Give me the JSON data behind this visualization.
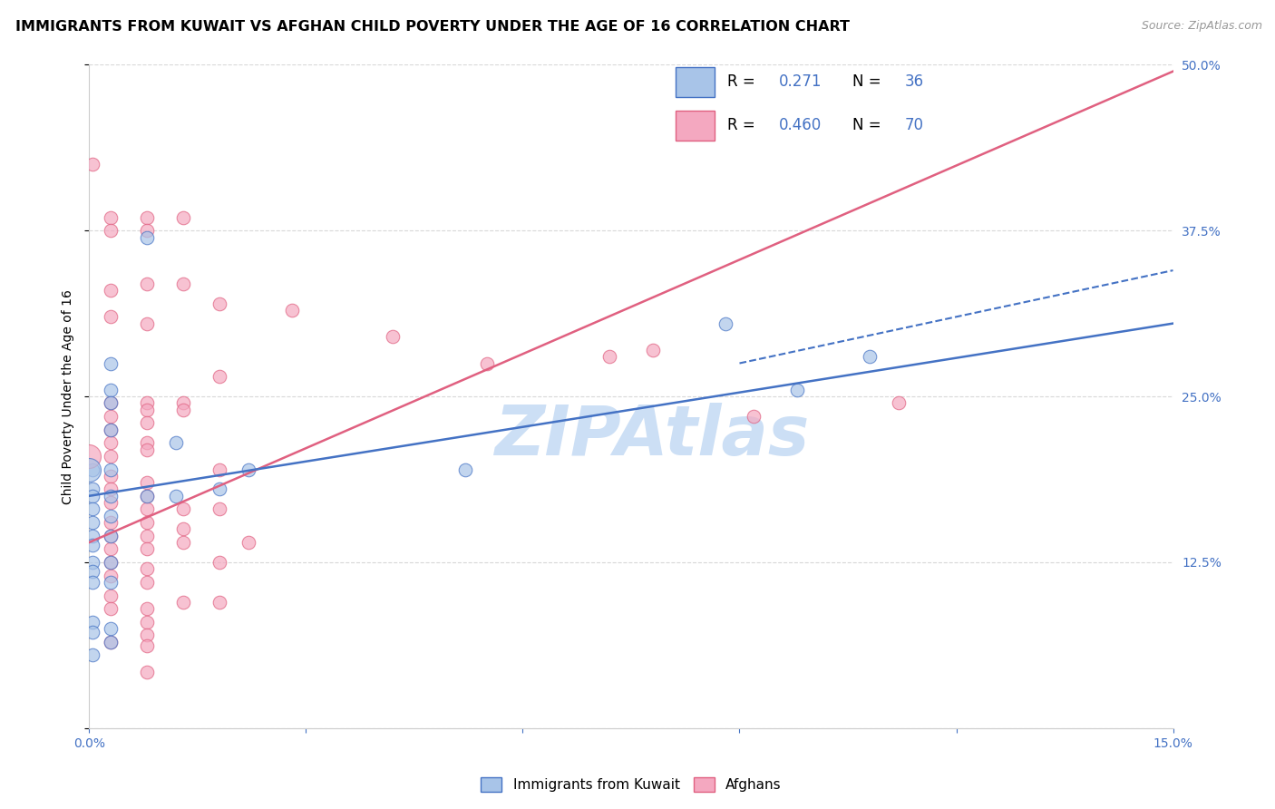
{
  "title": "IMMIGRANTS FROM KUWAIT VS AFGHAN CHILD POVERTY UNDER THE AGE OF 16 CORRELATION CHART",
  "source": "Source: ZipAtlas.com",
  "ylabel": "Child Poverty Under the Age of 16",
  "x_min": 0.0,
  "x_max": 0.15,
  "y_min": 0.0,
  "y_max": 0.5,
  "blue_color": "#a8c4e8",
  "pink_color": "#f4a8c0",
  "blue_line_color": "#4472c4",
  "pink_line_color": "#e06080",
  "blue_line": {
    "x0": 0.0,
    "y0": 0.175,
    "x1": 0.15,
    "y1": 0.305
  },
  "blue_dash_line": {
    "x0": 0.09,
    "y0": 0.275,
    "x1": 0.15,
    "y1": 0.345
  },
  "pink_line": {
    "x0": 0.0,
    "y0": 0.14,
    "x1": 0.15,
    "y1": 0.495
  },
  "blue_scatter": [
    [
      0.0005,
      0.195
    ],
    [
      0.0005,
      0.18
    ],
    [
      0.0005,
      0.175
    ],
    [
      0.0005,
      0.165
    ],
    [
      0.0005,
      0.155
    ],
    [
      0.0005,
      0.145
    ],
    [
      0.0005,
      0.138
    ],
    [
      0.0005,
      0.125
    ],
    [
      0.0005,
      0.118
    ],
    [
      0.0005,
      0.11
    ],
    [
      0.0005,
      0.08
    ],
    [
      0.0005,
      0.072
    ],
    [
      0.0005,
      0.055
    ],
    [
      0.003,
      0.275
    ],
    [
      0.003,
      0.255
    ],
    [
      0.003,
      0.245
    ],
    [
      0.003,
      0.225
    ],
    [
      0.003,
      0.195
    ],
    [
      0.003,
      0.175
    ],
    [
      0.003,
      0.16
    ],
    [
      0.003,
      0.145
    ],
    [
      0.003,
      0.125
    ],
    [
      0.003,
      0.11
    ],
    [
      0.003,
      0.075
    ],
    [
      0.003,
      0.065
    ],
    [
      0.008,
      0.37
    ],
    [
      0.008,
      0.175
    ],
    [
      0.012,
      0.215
    ],
    [
      0.012,
      0.175
    ],
    [
      0.018,
      0.18
    ],
    [
      0.022,
      0.195
    ],
    [
      0.052,
      0.195
    ],
    [
      0.088,
      0.305
    ],
    [
      0.098,
      0.255
    ],
    [
      0.108,
      0.28
    ]
  ],
  "pink_scatter": [
    [
      0.0005,
      0.425
    ],
    [
      0.003,
      0.385
    ],
    [
      0.003,
      0.375
    ],
    [
      0.003,
      0.33
    ],
    [
      0.003,
      0.31
    ],
    [
      0.003,
      0.245
    ],
    [
      0.003,
      0.235
    ],
    [
      0.003,
      0.225
    ],
    [
      0.003,
      0.215
    ],
    [
      0.003,
      0.205
    ],
    [
      0.003,
      0.19
    ],
    [
      0.003,
      0.18
    ],
    [
      0.003,
      0.17
    ],
    [
      0.003,
      0.155
    ],
    [
      0.003,
      0.145
    ],
    [
      0.003,
      0.135
    ],
    [
      0.003,
      0.125
    ],
    [
      0.003,
      0.115
    ],
    [
      0.003,
      0.1
    ],
    [
      0.003,
      0.09
    ],
    [
      0.003,
      0.065
    ],
    [
      0.008,
      0.385
    ],
    [
      0.008,
      0.375
    ],
    [
      0.008,
      0.335
    ],
    [
      0.008,
      0.305
    ],
    [
      0.008,
      0.245
    ],
    [
      0.008,
      0.24
    ],
    [
      0.008,
      0.23
    ],
    [
      0.008,
      0.215
    ],
    [
      0.008,
      0.21
    ],
    [
      0.008,
      0.185
    ],
    [
      0.008,
      0.175
    ],
    [
      0.008,
      0.165
    ],
    [
      0.008,
      0.155
    ],
    [
      0.008,
      0.145
    ],
    [
      0.008,
      0.135
    ],
    [
      0.008,
      0.12
    ],
    [
      0.008,
      0.11
    ],
    [
      0.008,
      0.09
    ],
    [
      0.008,
      0.08
    ],
    [
      0.008,
      0.07
    ],
    [
      0.008,
      0.062
    ],
    [
      0.008,
      0.042
    ],
    [
      0.013,
      0.385
    ],
    [
      0.013,
      0.335
    ],
    [
      0.013,
      0.245
    ],
    [
      0.013,
      0.24
    ],
    [
      0.013,
      0.165
    ],
    [
      0.013,
      0.15
    ],
    [
      0.013,
      0.14
    ],
    [
      0.013,
      0.095
    ],
    [
      0.018,
      0.32
    ],
    [
      0.018,
      0.265
    ],
    [
      0.018,
      0.195
    ],
    [
      0.018,
      0.165
    ],
    [
      0.018,
      0.125
    ],
    [
      0.018,
      0.095
    ],
    [
      0.022,
      0.14
    ],
    [
      0.028,
      0.315
    ],
    [
      0.042,
      0.295
    ],
    [
      0.055,
      0.275
    ],
    [
      0.072,
      0.28
    ],
    [
      0.078,
      0.285
    ],
    [
      0.092,
      0.235
    ],
    [
      0.112,
      0.245
    ]
  ],
  "large_blue_dot": [
    0.0,
    0.195
  ],
  "large_pink_dot": [
    0.0,
    0.205
  ],
  "background_color": "#ffffff",
  "grid_color": "#d8d8d8",
  "watermark_text": "ZIPAtlas",
  "watermark_color": "#ccdff5",
  "title_fontsize": 11.5,
  "axis_label_fontsize": 10,
  "tick_fontsize": 10
}
